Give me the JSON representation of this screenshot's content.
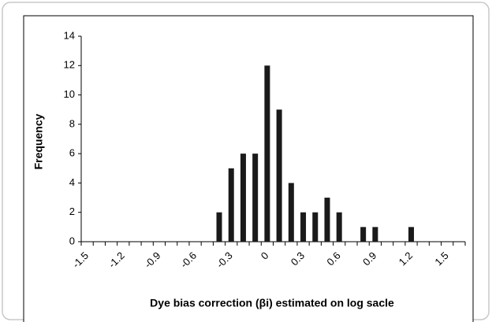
{
  "chart_data": {
    "type": "bar",
    "xlabel": "Dye bias correction (βi) estimated on log sacle",
    "ylabel": "Frequency",
    "categories": [
      "-1.5",
      null,
      null,
      "-1.2",
      null,
      null,
      "-0.9",
      null,
      null,
      "-0.6",
      null,
      null,
      "-0.3",
      null,
      null,
      "0",
      null,
      null,
      "0.3",
      null,
      null,
      "0.6",
      null,
      null,
      "0.9",
      null,
      null,
      "1.2",
      null,
      null,
      "1.5",
      null
    ],
    "values": [
      0,
      0,
      0,
      0,
      0,
      0,
      0,
      0,
      0,
      0,
      0,
      2,
      5,
      6,
      6,
      12,
      9,
      4,
      2,
      2,
      3,
      2,
      0,
      1,
      1,
      0,
      0,
      1,
      0,
      0,
      0,
      0
    ],
    "color": "#1a1a1a",
    "ylim": [
      0,
      14
    ],
    "yticks": [
      0,
      2,
      4,
      6,
      8,
      10,
      12,
      14
    ],
    "grid": false
  }
}
